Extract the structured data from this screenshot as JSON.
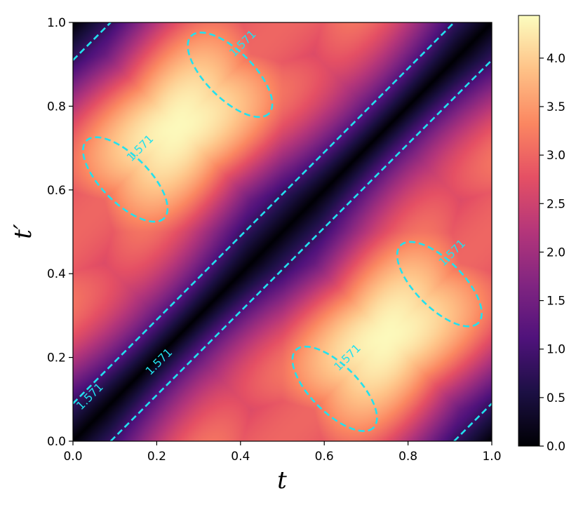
{
  "chart_data": {
    "type": "heatmap",
    "title": "",
    "xlabel": "t",
    "ylabel": "t′",
    "xlim": [
      0.0,
      1.0
    ],
    "ylim": [
      0.0,
      1.0
    ],
    "x_ticks": [
      "0.0",
      "0.2",
      "0.4",
      "0.6",
      "0.8",
      "1.0"
    ],
    "y_ticks": [
      "0.0",
      "0.2",
      "0.4",
      "0.6",
      "0.8",
      "1.0"
    ],
    "colormap": "magma",
    "colorbar": {
      "range": [
        0.0,
        4.44
      ],
      "ticks": [
        "0.0",
        "0.5",
        "1.0",
        "1.5",
        "2.0",
        "2.5",
        "3.0",
        "3.5",
        "4.0"
      ]
    },
    "contours": [
      {
        "level": 1.571,
        "label": "1.571",
        "color": "#22e1ee",
        "style": "dashed",
        "curves": [
          {
            "kind": "line",
            "points": [
              [
                0.0,
                0.91
              ],
              [
                0.09,
                1.0
              ]
            ]
          },
          {
            "kind": "line",
            "points": [
              [
                0.0,
                0.09
              ],
              [
                0.91,
                1.0
              ]
            ]
          },
          {
            "kind": "line",
            "points": [
              [
                0.09,
                0.0
              ],
              [
                1.0,
                0.91
              ]
            ]
          },
          {
            "kind": "line",
            "points": [
              [
                0.91,
                0.0
              ],
              [
                1.0,
                0.09
              ]
            ]
          },
          {
            "kind": "ellipse",
            "center": [
              0.125,
              0.625
            ],
            "semi_major": 0.131,
            "semi_minor": 0.0565
          },
          {
            "kind": "ellipse",
            "center": [
              0.375,
              0.875
            ],
            "semi_major": 0.131,
            "semi_minor": 0.0565
          },
          {
            "kind": "ellipse",
            "center": [
              0.625,
              0.125
            ],
            "semi_major": 0.131,
            "semi_minor": 0.0565
          },
          {
            "kind": "ellipse",
            "center": [
              0.875,
              0.375
            ],
            "semi_major": 0.131,
            "semi_minor": 0.0565
          }
        ],
        "label_positions": [
          [
            0.04,
            0.107
          ],
          [
            0.205,
            0.19
          ],
          [
            0.16,
            0.7
          ],
          [
            0.405,
            0.95
          ],
          [
            0.655,
            0.2
          ],
          [
            0.905,
            0.45
          ]
        ]
      }
    ],
    "grid": false
  }
}
